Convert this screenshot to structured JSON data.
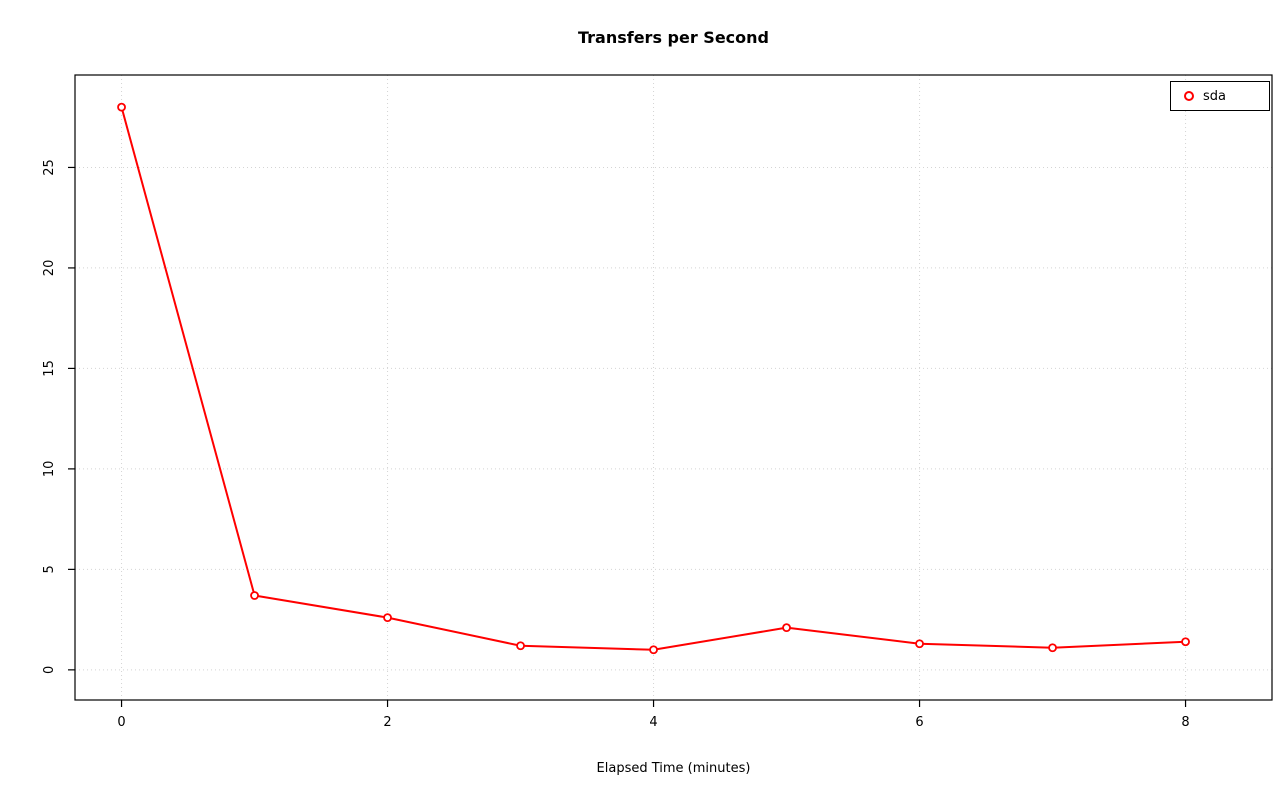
{
  "chart_data": {
    "type": "line",
    "title": "Transfers per Second",
    "xlabel": "Elapsed Time (minutes)",
    "ylabel": "",
    "x": [
      0,
      1,
      2,
      3,
      4,
      5,
      6,
      7,
      8
    ],
    "series": [
      {
        "name": "sda",
        "color": "#ff0000",
        "marker": "open-circle",
        "values": [
          28.0,
          3.7,
          2.6,
          1.2,
          1.0,
          2.1,
          1.3,
          1.1,
          1.4
        ]
      }
    ],
    "xticks": [
      0,
      2,
      4,
      6,
      8
    ],
    "yticks": [
      0,
      5,
      10,
      15,
      20,
      25
    ],
    "xlim": [
      -0.35,
      8.65
    ],
    "ylim": [
      -1.5,
      29.6
    ],
    "grid": true,
    "grid_color": "#d4d4d4",
    "axis_color": "#000000",
    "background": "#ffffff",
    "legend_position": "top-right"
  }
}
